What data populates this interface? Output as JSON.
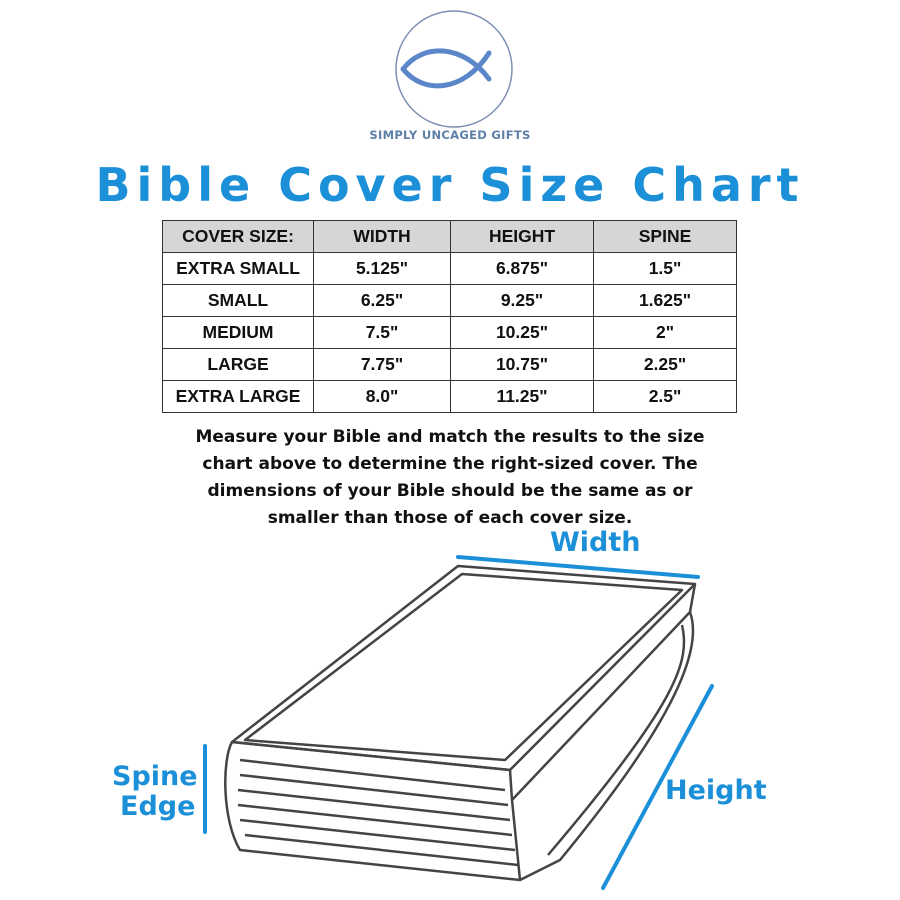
{
  "logo": {
    "brand": "SIMPLY UNCAGED GIFTS",
    "icon": "ichthys-fish-icon",
    "color": "#5b86c9"
  },
  "title": "Bible Cover Size Chart",
  "table": {
    "headers": [
      "COVER SIZE:",
      "WIDTH",
      "HEIGHT",
      "SPINE"
    ],
    "rows": [
      [
        "EXTRA SMALL",
        "5.125\"",
        "6.875\"",
        "1.5\""
      ],
      [
        "SMALL",
        "6.25\"",
        "9.25\"",
        "1.625\""
      ],
      [
        "MEDIUM",
        "7.5\"",
        "10.25\"",
        "2\""
      ],
      [
        "LARGE",
        "7.75\"",
        "10.75\"",
        "2.25\""
      ],
      [
        "EXTRA LARGE",
        "8.0\"",
        "11.25\"",
        "2.5\""
      ]
    ]
  },
  "note": "Measure your Bible and match the results to the size chart above to determine the right-sized cover. The dimensions of your Bible should be the same as or smaller than those of each cover size.",
  "diagram": {
    "width_label": "Width",
    "height_label": "Height",
    "spine_label_1": "Spine",
    "spine_label_2": "Edge",
    "accent": "#1b8fd8"
  }
}
